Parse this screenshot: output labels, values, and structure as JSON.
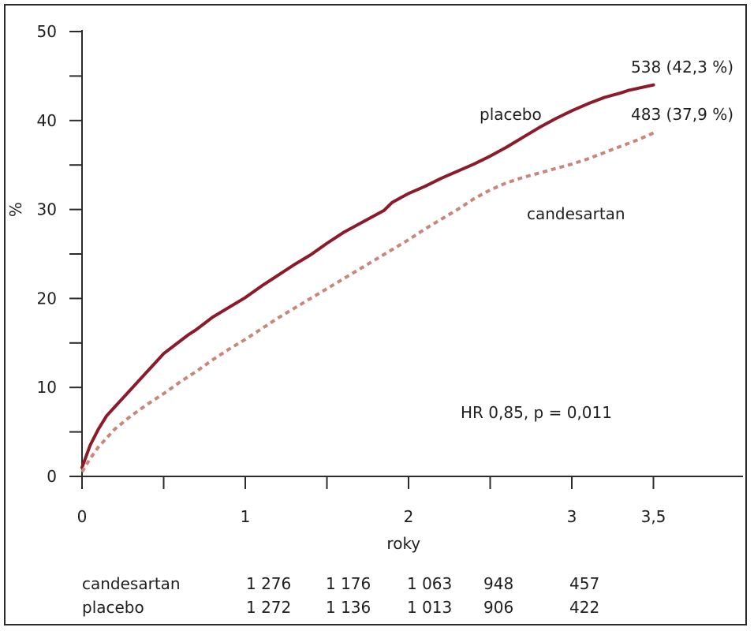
{
  "chart_data": {
    "type": "line",
    "title": "",
    "xlabel": "roky",
    "ylabel": "%",
    "xlim": [
      0,
      4
    ],
    "ylim": [
      0,
      50
    ],
    "x_ticks": [
      {
        "value": 0,
        "label": "0"
      },
      {
        "value": 1,
        "label": "1"
      },
      {
        "value": 2,
        "label": "2"
      },
      {
        "value": 3,
        "label": "3"
      },
      {
        "value": 3.5,
        "label": "3,5"
      }
    ],
    "y_ticks": [
      {
        "value": 0,
        "label": "0"
      },
      {
        "value": 10,
        "label": "10"
      },
      {
        "value": 20,
        "label": "20"
      },
      {
        "value": 30,
        "label": "30"
      },
      {
        "value": 40,
        "label": "40"
      },
      {
        "value": 50,
        "label": "50"
      }
    ],
    "grid": false,
    "series": [
      {
        "name": "placebo",
        "color": "#8b1a2b",
        "style": "solid",
        "end_label": "538 (42,3 %)",
        "x": [
          0,
          0.05,
          0.1,
          0.15,
          0.2,
          0.25,
          0.3,
          0.35,
          0.4,
          0.45,
          0.5,
          0.55,
          0.6,
          0.65,
          0.7,
          0.75,
          0.8,
          0.9,
          1.0,
          1.1,
          1.2,
          1.3,
          1.4,
          1.5,
          1.6,
          1.7,
          1.8,
          1.85,
          1.9,
          2.0,
          2.1,
          2.2,
          2.3,
          2.4,
          2.5,
          2.6,
          2.7,
          2.8,
          2.9,
          3.0,
          3.1,
          3.2,
          3.3,
          3.35,
          3.4,
          3.45,
          3.5
        ],
        "y": [
          1.0,
          3.5,
          5.3,
          6.8,
          7.8,
          8.8,
          9.8,
          10.8,
          11.8,
          12.8,
          13.8,
          14.5,
          15.2,
          15.9,
          16.5,
          17.2,
          17.9,
          19.0,
          20.1,
          21.4,
          22.6,
          23.8,
          24.9,
          26.2,
          27.4,
          28.4,
          29.4,
          29.9,
          30.8,
          31.8,
          32.6,
          33.5,
          34.3,
          35.1,
          36.0,
          37.0,
          38.1,
          39.2,
          40.2,
          41.1,
          41.9,
          42.6,
          43.1,
          43.4,
          43.6,
          43.8,
          44.0
        ]
      },
      {
        "name": "candesartan",
        "color": "#c9867a",
        "style": "dashed",
        "end_label": "483 (37,9 %)",
        "x": [
          0,
          0.05,
          0.1,
          0.2,
          0.3,
          0.4,
          0.5,
          0.6,
          0.7,
          0.8,
          0.9,
          1.0,
          1.1,
          1.2,
          1.3,
          1.4,
          1.5,
          1.6,
          1.7,
          1.8,
          1.9,
          2.0,
          2.1,
          2.2,
          2.3,
          2.4,
          2.5,
          2.6,
          2.7,
          2.8,
          2.9,
          3.0,
          3.1,
          3.2,
          3.3,
          3.4,
          3.5
        ],
        "y": [
          0.5,
          2.0,
          3.3,
          5.3,
          6.8,
          8.1,
          9.3,
          10.6,
          11.8,
          13.1,
          14.3,
          15.4,
          16.6,
          17.8,
          18.9,
          20.0,
          21.1,
          22.2,
          23.3,
          24.4,
          25.5,
          26.6,
          27.8,
          28.9,
          30.0,
          31.2,
          32.2,
          33.0,
          33.6,
          34.1,
          34.6,
          35.1,
          35.7,
          36.4,
          37.1,
          37.8,
          38.6
        ]
      }
    ],
    "annotations": [
      {
        "text": "HR 0,85,  p = 0,011"
      }
    ],
    "risk_table": {
      "rows": [
        {
          "name": "candesartan",
          "values": [
            "1 276",
            "1 176",
            "1 063",
            "948",
            "457"
          ]
        },
        {
          "name": "placebo",
          "values": [
            "1 272",
            "1 136",
            "1 013",
            "906",
            "422"
          ]
        }
      ]
    }
  }
}
